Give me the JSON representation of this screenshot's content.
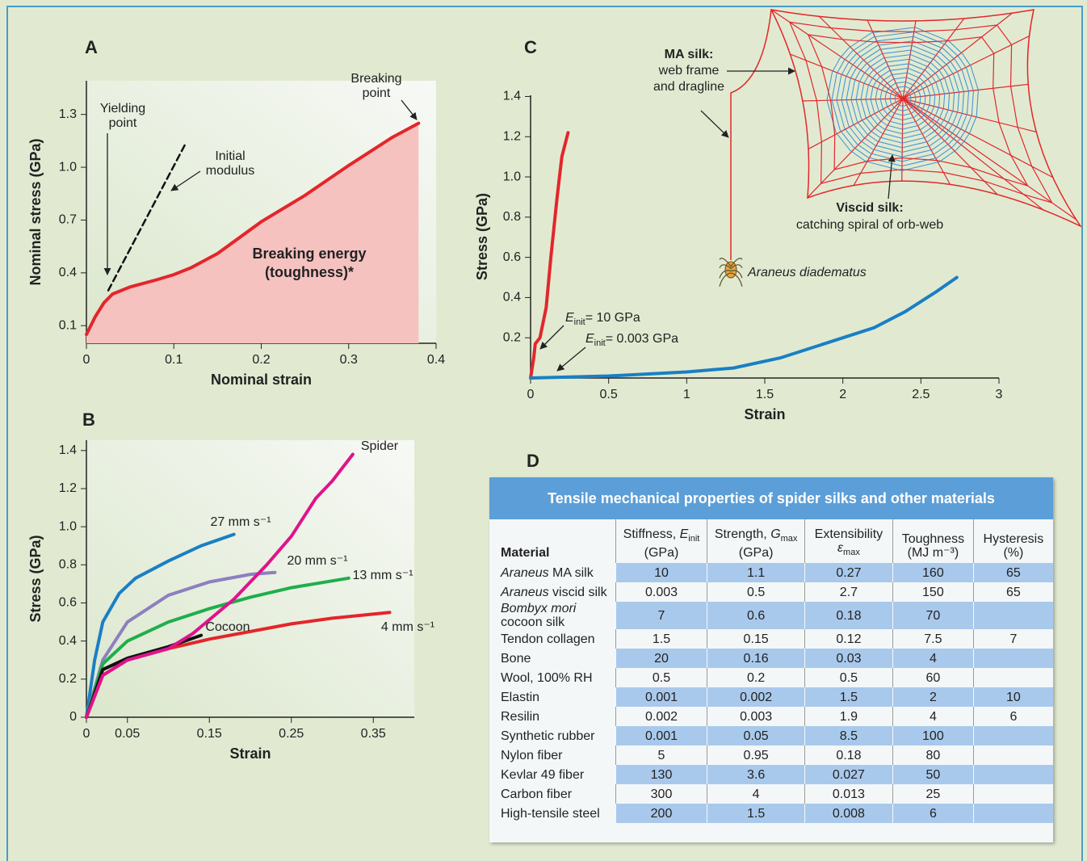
{
  "chart_data": [
    {
      "type": "line",
      "panel_label": "A",
      "xlabel": "Nominal strain",
      "ylabel": "Nominal stress (GPa)",
      "xlim": [
        0,
        0.4
      ],
      "ylim": [
        0,
        1.45
      ],
      "xticks": [
        0,
        0.1,
        0.2,
        0.3,
        0.4
      ],
      "yticks": [
        0.1,
        0.4,
        0.7,
        {
          "value": 1,
          "label": "1.0"
        },
        1.3
      ],
      "series": [
        {
          "color": "#e3262b",
          "fill": "#f5c2c0",
          "x": [
            0,
            0.01,
            0.02,
            0.03,
            0.05,
            0.08,
            0.1,
            0.12,
            0.15,
            0.2,
            0.25,
            0.3,
            0.35,
            0.38
          ],
          "values": [
            0.05,
            0.15,
            0.23,
            0.28,
            0.32,
            0.36,
            0.39,
            0.43,
            0.51,
            0.69,
            0.84,
            1.01,
            1.17,
            1.25
          ]
        },
        {
          "color": "#111111",
          "dash": true,
          "x": [
            0.025,
            0.113
          ],
          "values": [
            0.3,
            1.13
          ]
        }
      ],
      "annotations": [
        {
          "lines": [
            "Yielding",
            "point"
          ]
        },
        {
          "lines": [
            "Initial",
            "modulus"
          ]
        },
        {
          "lines": [
            "Breaking",
            "point"
          ]
        },
        {
          "lines": [
            "Breaking energy",
            "(toughness)*"
          ]
        }
      ]
    },
    {
      "type": "line",
      "panel_label": "B",
      "xlabel": "Strain",
      "ylabel": "Stress (GPa)",
      "xlim": [
        0,
        0.4
      ],
      "ylim": [
        0,
        1.45
      ],
      "xticks": [
        0,
        0.05,
        0.15,
        0.25,
        0.35
      ],
      "yticks": [
        0,
        0.2,
        0.4,
        0.6,
        0.8,
        {
          "value": 1,
          "label": "1.0"
        },
        1.2,
        1.4
      ],
      "series": [
        {
          "name": "27 mm s⁻¹",
          "color": "#1a7fc4",
          "x": [
            0,
            0.01,
            0.02,
            0.04,
            0.06,
            0.1,
            0.14,
            0.18
          ],
          "values": [
            0,
            0.3,
            0.5,
            0.65,
            0.73,
            0.82,
            0.9,
            0.96
          ]
        },
        {
          "name": "20 mm s⁻¹",
          "color": "#8d7fc0",
          "x": [
            0,
            0.02,
            0.05,
            0.1,
            0.15,
            0.2,
            0.23
          ],
          "values": [
            0,
            0.3,
            0.5,
            0.64,
            0.71,
            0.75,
            0.76
          ]
        },
        {
          "name": "13 mm s⁻¹",
          "color": "#1fae4b",
          "x": [
            0,
            0.02,
            0.05,
            0.1,
            0.15,
            0.2,
            0.25,
            0.32
          ],
          "values": [
            0,
            0.28,
            0.4,
            0.5,
            0.57,
            0.63,
            0.68,
            0.73
          ]
        },
        {
          "name": "4 mm s⁻¹",
          "color": "#e3262b",
          "x": [
            0,
            0.02,
            0.05,
            0.1,
            0.15,
            0.2,
            0.25,
            0.3,
            0.37
          ],
          "values": [
            0,
            0.22,
            0.3,
            0.36,
            0.41,
            0.45,
            0.49,
            0.52,
            0.55
          ]
        },
        {
          "name": "Cocoon",
          "color": "#111111",
          "x": [
            0,
            0.02,
            0.05,
            0.1,
            0.14
          ],
          "values": [
            0,
            0.25,
            0.31,
            0.37,
            0.43
          ]
        },
        {
          "name": "Spider",
          "color": "#e0138c",
          "x": [
            0,
            0.02,
            0.05,
            0.1,
            0.13,
            0.18,
            0.22,
            0.25,
            0.28,
            0.3,
            0.325
          ],
          "values": [
            0,
            0.22,
            0.3,
            0.36,
            0.44,
            0.62,
            0.8,
            0.95,
            1.15,
            1.24,
            1.38
          ]
        }
      ]
    },
    {
      "type": "line",
      "panel_label": "C",
      "xlabel": "Strain",
      "ylabel": "Stress (GPa)",
      "xlim": [
        0,
        3
      ],
      "ylim": [
        0,
        1.45
      ],
      "xticks": [
        0,
        0.5,
        1,
        1.5,
        2,
        2.5,
        3
      ],
      "yticks": [
        0.2,
        0.4,
        0.6,
        0.8,
        {
          "value": 1,
          "label": "1.0"
        },
        1.2,
        1.4
      ],
      "series": [
        {
          "color": "#e3262b",
          "x": [
            0,
            0.02,
            0.03,
            0.06,
            0.1,
            0.13,
            0.17,
            0.2,
            0.24
          ],
          "values": [
            0,
            0.1,
            0.17,
            0.2,
            0.35,
            0.6,
            0.9,
            1.1,
            1.22
          ]
        },
        {
          "color": "#1a7fc4",
          "x": [
            0,
            0.5,
            1,
            1.3,
            1.6,
            2,
            2.2,
            2.4,
            2.6,
            2.73
          ],
          "values": [
            0,
            0.01,
            0.03,
            0.05,
            0.1,
            0.2,
            0.25,
            0.33,
            0.43,
            0.5
          ]
        }
      ],
      "annotations": [
        {
          "symbol": "E",
          "sub": "init",
          "text": "= 10 GPa"
        },
        {
          "symbol": "E",
          "sub": "init",
          "text": "= 0.003 GPa"
        },
        {
          "lines": [
            "MA silk:",
            "web frame",
            "and dragline"
          ]
        },
        {
          "lines": [
            "Viscid silk:",
            "catching spiral of orb-web"
          ]
        },
        {
          "lines": [
            "Araneus diadematus"
          ]
        }
      ]
    }
  ],
  "table": {
    "panel_label": "D",
    "title": "Tensile mechanical properties of spider silks and other materials",
    "headers": [
      {
        "text": "Material"
      },
      {
        "text": "Stiffness, ",
        "var": "E",
        "sub": "init",
        "unit": "(GPa)"
      },
      {
        "text": "Strength, ",
        "var": "G",
        "sub": "max",
        "unit": "(GPa)"
      },
      {
        "text": "Extensibility",
        "var": "ε",
        "sub": "max"
      },
      {
        "text": "Toughness",
        "unit": "(MJ m⁻³)"
      },
      {
        "text": "Hysteresis",
        "unit": "(%)"
      }
    ],
    "rows": [
      {
        "material": {
          "italic": "Araneus",
          "text": " MA silk"
        },
        "values": [
          10,
          1.1,
          0.27,
          160,
          65
        ]
      },
      {
        "material": {
          "italic": "Araneus",
          "text": " viscid silk"
        },
        "values": [
          0.003,
          0.5,
          2.7,
          150,
          65
        ]
      },
      {
        "material": {
          "italic": "Bombyx mori",
          "text": "\ncocoon silk"
        },
        "values": [
          7,
          0.6,
          0.18,
          70,
          null
        ]
      },
      {
        "material": "Tendon collagen",
        "values": [
          1.5,
          0.15,
          0.12,
          7.5,
          7
        ]
      },
      {
        "material": "Bone",
        "values": [
          20,
          0.16,
          0.03,
          4,
          null
        ]
      },
      {
        "material": "Wool, 100% RH",
        "values": [
          0.5,
          0.2,
          0.5,
          60,
          null
        ]
      },
      {
        "material": "Elastin",
        "values": [
          0.001,
          0.002,
          1.5,
          2,
          10
        ]
      },
      {
        "material": "Resilin",
        "values": [
          0.002,
          0.003,
          1.9,
          4,
          6
        ]
      },
      {
        "material": "Synthetic rubber",
        "values": [
          0.001,
          0.05,
          8.5,
          100,
          null
        ]
      },
      {
        "material": "Nylon fiber",
        "values": [
          5,
          0.95,
          0.18,
          80,
          null
        ]
      },
      {
        "material": "Kevlar 49 fiber",
        "values": [
          130,
          3.6,
          0.027,
          50,
          null
        ]
      },
      {
        "material": "Carbon fiber",
        "values": [
          300,
          4,
          0.013,
          25,
          null
        ]
      },
      {
        "material": "High-tensile steel",
        "values": [
          200,
          1.5,
          0.008,
          6,
          null
        ]
      }
    ]
  }
}
